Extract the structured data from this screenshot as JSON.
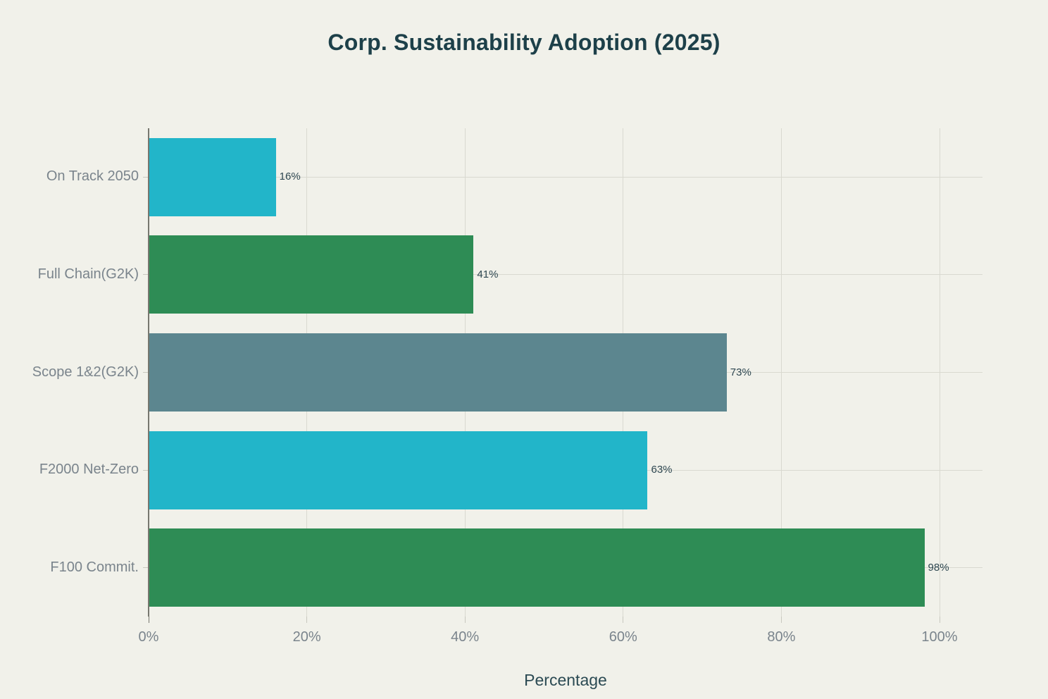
{
  "chart_data": {
    "type": "bar",
    "orientation": "horizontal",
    "title": "Corp. Sustainability Adoption (2025)",
    "xlabel": "Percentage",
    "ylabel": "",
    "categories": [
      "On Track 2050",
      "Full Chain(G2K)",
      "Scope 1&2(G2K)",
      "F2000 Net-Zero",
      "F100 Commit."
    ],
    "values": [
      16,
      41,
      73,
      63,
      98
    ],
    "value_labels": [
      "16%",
      "41%",
      "73%",
      "63%",
      "98%"
    ],
    "bar_colors": [
      "#22b5c9",
      "#2e8c55",
      "#5c868f",
      "#22b5c9",
      "#2e8c55"
    ],
    "x_ticks": [
      {
        "value": 0,
        "label": "0%"
      },
      {
        "value": 20,
        "label": "20%"
      },
      {
        "value": 40,
        "label": "40%"
      },
      {
        "value": 60,
        "label": "60%"
      },
      {
        "value": 80,
        "label": "80%"
      },
      {
        "value": 100,
        "label": "100%"
      }
    ],
    "xlim": [
      0,
      105.4
    ],
    "grid": true,
    "legend_position": "none",
    "colors": {
      "background": "#f1f1ea",
      "title": "#1d4049",
      "axis_title": "#2b4a53",
      "tick_label": "#7a848c",
      "category_label": "#7a848c",
      "value_label": "#2e4751",
      "grid": "#d9d9d0",
      "axis_line": "#77776f",
      "tick_mark": "#c8c8bf"
    }
  }
}
